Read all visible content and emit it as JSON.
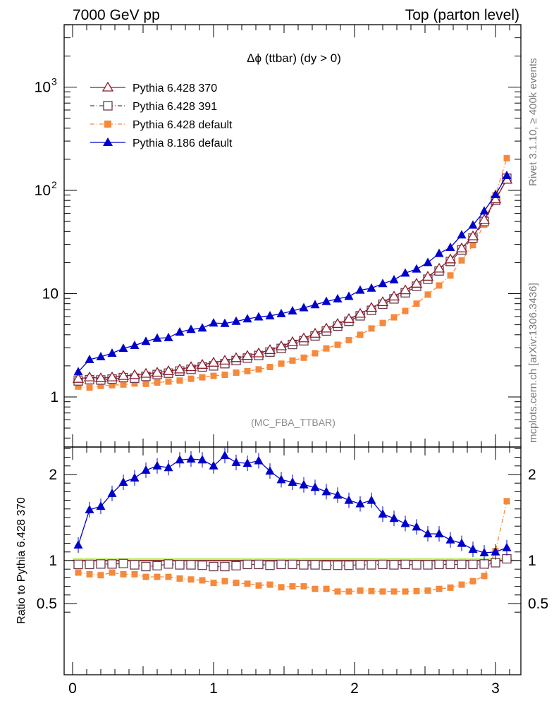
{
  "header": {
    "left": "7000 GeV pp",
    "right": "Top (parton level)"
  },
  "side_text": {
    "rivet": "Rivet 3.1.10, ≥ 400k events",
    "url": "mcplots.cern.ch [arXiv:1306.3436]"
  },
  "colors": {
    "py6_370": "#8b1a2b",
    "py6_391": "#6b3a4d",
    "py6_default": "#f58a3c",
    "py8_default": "#0000cc",
    "band": "#c8f07a"
  },
  "chart_data": [
    {
      "type": "line",
      "title": "Δϕ (ttbar) (dy > 0)",
      "plot_name": "(MC_FBA_TTBAR)",
      "yscale": "log",
      "ylim": [
        0.3,
        4000
      ],
      "xlim": [
        -0.06,
        3.2
      ],
      "x_ticks": [
        "0",
        "1",
        "2",
        "3"
      ],
      "y_ticks": [
        {
          "value": 1,
          "label": "1"
        },
        {
          "value": 10,
          "label": "10"
        },
        {
          "value": 100,
          "label": "10",
          "sup": "2"
        },
        {
          "value": 1000,
          "label": "10",
          "sup": "3"
        }
      ],
      "legend_position": "top-left",
      "legend": [
        {
          "name": "Pythia 6.428 370",
          "series": 0
        },
        {
          "name": "Pythia 6.428 391",
          "series": 1
        },
        {
          "name": "Pythia 6.428 default",
          "series": 2
        },
        {
          "name": "Pythia 8.186 default",
          "series": 3
        }
      ],
      "x": [
        0.04,
        0.12,
        0.2,
        0.28,
        0.36,
        0.44,
        0.52,
        0.6,
        0.68,
        0.76,
        0.84,
        0.92,
        1.0,
        1.08,
        1.16,
        1.24,
        1.32,
        1.4,
        1.48,
        1.56,
        1.64,
        1.72,
        1.8,
        1.88,
        1.96,
        2.04,
        2.12,
        2.2,
        2.28,
        2.36,
        2.44,
        2.52,
        2.6,
        2.68,
        2.76,
        2.84,
        2.92,
        3.0,
        3.08
      ],
      "series": [
        {
          "name": "Pythia 6.428 370",
          "style": "open-triangle",
          "values": [
            1.5,
            1.55,
            1.52,
            1.55,
            1.6,
            1.63,
            1.68,
            1.72,
            1.78,
            1.85,
            1.95,
            2.05,
            2.15,
            2.25,
            2.38,
            2.5,
            2.65,
            2.85,
            3.1,
            3.4,
            3.7,
            4.1,
            4.6,
            5.1,
            5.7,
            6.4,
            7.3,
            8.3,
            9.4,
            10.8,
            12.5,
            14.6,
            17.5,
            21.5,
            27.5,
            36.0,
            52.0,
            82.0,
            127.0
          ]
        },
        {
          "name": "Pythia 6.428 391",
          "style": "open-square",
          "values": [
            1.43,
            1.47,
            1.46,
            1.49,
            1.54,
            1.52,
            1.58,
            1.65,
            1.7,
            1.78,
            1.85,
            1.95,
            2.0,
            2.1,
            2.25,
            2.38,
            2.52,
            2.72,
            2.95,
            3.22,
            3.5,
            3.9,
            4.35,
            4.85,
            5.4,
            6.1,
            6.9,
            7.9,
            8.9,
            10.2,
            11.8,
            13.8,
            16.6,
            20.5,
            26.5,
            34.5,
            50.0,
            80.0,
            131.0
          ]
        },
        {
          "name": "Pythia 6.428 default",
          "style": "filled-square",
          "values": [
            1.26,
            1.23,
            1.28,
            1.3,
            1.32,
            1.35,
            1.34,
            1.38,
            1.41,
            1.44,
            1.5,
            1.55,
            1.6,
            1.64,
            1.72,
            1.78,
            1.85,
            1.95,
            2.1,
            2.25,
            2.4,
            2.65,
            2.95,
            3.2,
            3.55,
            4.0,
            4.6,
            5.2,
            5.9,
            6.8,
            8.0,
            9.8,
            12.0,
            15.0,
            21.0,
            29.5,
            46.5,
            90.0,
            205.0
          ]
        },
        {
          "name": "Pythia 8.186 default",
          "style": "filled-triangle",
          "values": [
            1.75,
            2.3,
            2.45,
            2.65,
            2.95,
            3.15,
            3.45,
            3.7,
            3.75,
            4.25,
            4.5,
            4.65,
            5.2,
            5.15,
            5.4,
            5.7,
            5.95,
            6.1,
            6.4,
            6.8,
            7.3,
            7.8,
            8.4,
            8.9,
            9.4,
            10.8,
            11.3,
            12.5,
            13.6,
            15.8,
            17.3,
            20.0,
            24.5,
            28.0,
            37.0,
            46.0,
            63.0,
            91.0,
            139.0
          ]
        }
      ]
    },
    {
      "type": "line",
      "ylabel": "Ratio to Pythia 6.428 370",
      "ylim": [
        0.4,
        2.35
      ],
      "y_ticks": [
        {
          "value": 0.5,
          "label": "0.5"
        },
        {
          "value": 1,
          "label": "1"
        },
        {
          "value": 2,
          "label": "2"
        }
      ],
      "x_ticks": [
        "0",
        "1",
        "2",
        "3"
      ],
      "reference_band": [
        0.985,
        1.03
      ],
      "x": [
        0.04,
        0.12,
        0.2,
        0.28,
        0.36,
        0.44,
        0.52,
        0.6,
        0.68,
        0.76,
        0.84,
        0.92,
        1.0,
        1.08,
        1.16,
        1.24,
        1.32,
        1.4,
        1.48,
        1.56,
        1.64,
        1.72,
        1.8,
        1.88,
        1.96,
        2.04,
        2.12,
        2.2,
        2.28,
        2.36,
        2.44,
        2.52,
        2.6,
        2.68,
        2.76,
        2.84,
        2.92,
        3.0,
        3.08
      ],
      "series": [
        {
          "name": "Pythia 6.428 391",
          "style": "open-square",
          "values": [
            0.955,
            0.955,
            0.96,
            0.96,
            0.965,
            0.95,
            0.93,
            0.94,
            0.96,
            0.95,
            0.95,
            0.945,
            0.93,
            0.93,
            0.94,
            0.955,
            0.955,
            0.945,
            0.955,
            0.955,
            0.95,
            0.95,
            0.945,
            0.945,
            0.945,
            0.95,
            0.95,
            0.955,
            0.95,
            0.955,
            0.95,
            0.95,
            0.955,
            0.955,
            0.955,
            0.955,
            0.96,
            0.975,
            1.02
          ]
        },
        {
          "name": "Pythia 6.428 default",
          "style": "filled-square",
          "values": [
            0.86,
            0.84,
            0.83,
            0.86,
            0.84,
            0.84,
            0.81,
            0.81,
            0.81,
            0.79,
            0.78,
            0.77,
            0.74,
            0.76,
            0.74,
            0.73,
            0.71,
            0.72,
            0.69,
            0.7,
            0.7,
            0.67,
            0.67,
            0.64,
            0.64,
            0.65,
            0.645,
            0.64,
            0.64,
            0.64,
            0.645,
            0.65,
            0.67,
            0.685,
            0.72,
            0.76,
            0.82,
            1.11,
            1.69
          ]
        },
        {
          "name": "Pythia 8.186 default",
          "style": "filled-triangle",
          "values": [
            1.18,
            1.59,
            1.63,
            1.78,
            1.91,
            1.96,
            2.05,
            2.1,
            2.08,
            2.17,
            2.18,
            2.17,
            2.1,
            2.22,
            2.14,
            2.13,
            2.16,
            2.04,
            1.94,
            1.91,
            1.88,
            1.85,
            1.8,
            1.76,
            1.7,
            1.66,
            1.7,
            1.54,
            1.49,
            1.43,
            1.39,
            1.31,
            1.31,
            1.24,
            1.2,
            1.13,
            1.09,
            1.1,
            1.15
          ]
        }
      ]
    }
  ]
}
